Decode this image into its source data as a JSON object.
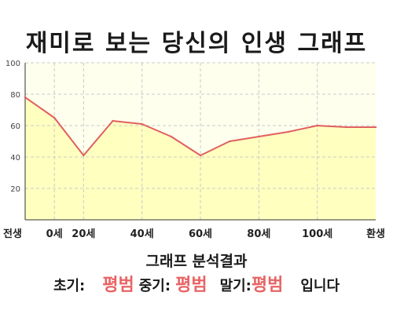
{
  "chart_data": {
    "type": "area",
    "title": "재미로 보는 당신의 인생 그래프",
    "categories": [
      "전생",
      "0세",
      "20세",
      "40세",
      "60세",
      "80세",
      "100세",
      "환생"
    ],
    "x": [
      "전생",
      "0세",
      "20세",
      "30세",
      "40세",
      "50세",
      "60세",
      "70세",
      "80세",
      "90세",
      "100세",
      "110세",
      "환생"
    ],
    "values": [
      78,
      65,
      41,
      63,
      61,
      53,
      41,
      50,
      53,
      56,
      60,
      59,
      59
    ],
    "ylim": [
      0,
      100
    ],
    "yticks": [
      20,
      40,
      60,
      80,
      100
    ],
    "grid": true,
    "line_color": "#e06060",
    "fill_color": "#ffffc0"
  },
  "analysis": {
    "heading": "그래프 분석결과",
    "early_label": "초기:",
    "early_value": "평범",
    "mid_label": "중기:",
    "mid_value": "평범",
    "late_label": "말기:",
    "late_value": "평범",
    "suffix": "입니다"
  },
  "colors": {
    "verdict": "#e86464",
    "plot_bg": "#ffffee"
  }
}
